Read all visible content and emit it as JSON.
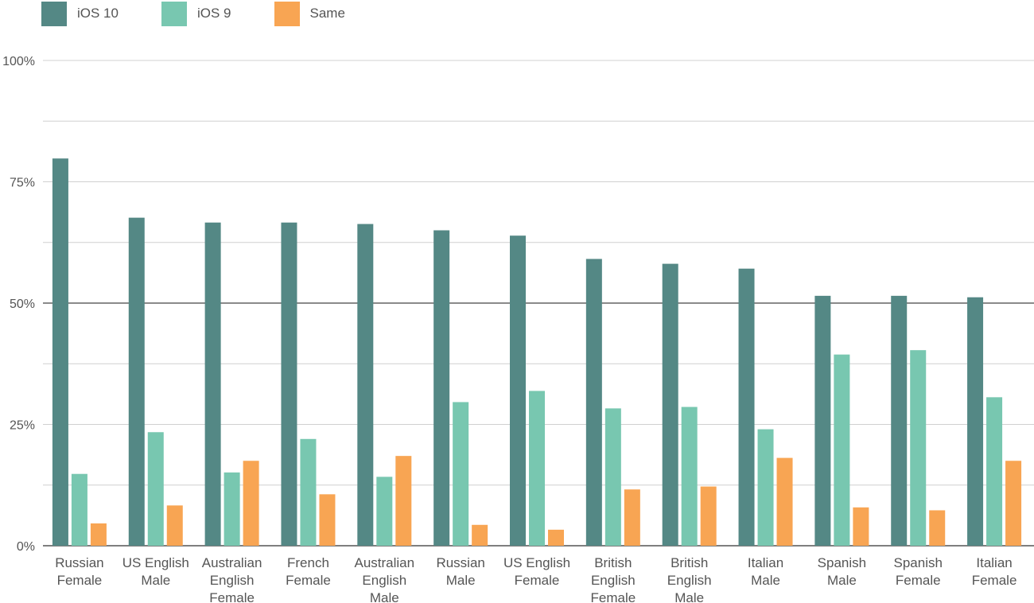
{
  "colors": {
    "ios10": "#548885",
    "ios9": "#78c7b0",
    "same": "#f8a553"
  },
  "chart_data": {
    "type": "bar",
    "categories": [
      [
        "Russian",
        "Female"
      ],
      [
        "US English",
        "Male"
      ],
      [
        "Australian",
        "English",
        "Female"
      ],
      [
        "French",
        "Female"
      ],
      [
        "Australian",
        "English",
        "Male"
      ],
      [
        "Russian",
        "Male"
      ],
      [
        "US English",
        "Female"
      ],
      [
        "British",
        "English",
        "Female"
      ],
      [
        "British",
        "English",
        "Male"
      ],
      [
        "Italian",
        "Male"
      ],
      [
        "Spanish",
        "Male"
      ],
      [
        "Spanish",
        "Female"
      ],
      [
        "Italian",
        "Female"
      ]
    ],
    "series": [
      {
        "name": "iOS 10",
        "values": [
          79.8,
          67.6,
          66.6,
          66.6,
          66.3,
          65.0,
          63.9,
          59.1,
          58.1,
          57.1,
          51.5,
          51.5,
          51.2
        ]
      },
      {
        "name": "iOS 9",
        "values": [
          14.8,
          23.4,
          15.1,
          22.0,
          14.2,
          29.6,
          31.9,
          28.3,
          28.6,
          24.0,
          39.4,
          40.3,
          30.6
        ]
      },
      {
        "name": "Same",
        "values": [
          4.6,
          8.3,
          17.5,
          10.6,
          18.5,
          4.3,
          3.3,
          11.6,
          12.2,
          18.1,
          7.9,
          7.3,
          17.5
        ]
      }
    ],
    "yticks": [
      "0%",
      "25%",
      "50%",
      "75%",
      "100%"
    ],
    "ylim": [
      0,
      100
    ],
    "legend_position": "top-left",
    "grid": true
  }
}
